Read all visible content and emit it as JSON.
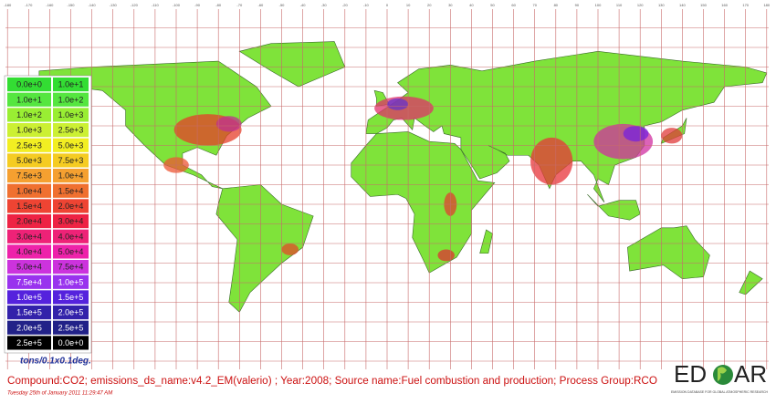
{
  "map": {
    "lon_labels": [
      "-180",
      "-170",
      "-160",
      "-150",
      "-140",
      "-130",
      "-120",
      "-110",
      "-100",
      "-90",
      "-80",
      "-70",
      "-60",
      "-50",
      "-40",
      "-30",
      "-20",
      "-10",
      "0",
      "10",
      "20",
      "30",
      "40",
      "50",
      "60",
      "70",
      "80",
      "90",
      "100",
      "110",
      "120",
      "130",
      "140",
      "150",
      "160",
      "170",
      "180"
    ],
    "legend": [
      {
        "low": "0.0e+0",
        "high": "1.0e+1",
        "color": "#33dd33"
      },
      {
        "low": "1.0e+1",
        "high": "1.0e+2",
        "color": "#55e640"
      },
      {
        "low": "1.0e+2",
        "high": "1.0e+3",
        "color": "#99ee33"
      },
      {
        "low": "1.0e+3",
        "high": "2.5e+3",
        "color": "#ccf033"
      },
      {
        "low": "2.5e+3",
        "high": "5.0e+3",
        "color": "#f2ee22"
      },
      {
        "low": "5.0e+3",
        "high": "7.5e+3",
        "color": "#f5cc22"
      },
      {
        "low": "7.5e+3",
        "high": "1.0e+4",
        "color": "#f5a030"
      },
      {
        "low": "1.0e+4",
        "high": "1.5e+4",
        "color": "#f07030"
      },
      {
        "low": "1.5e+4",
        "high": "2.0e+4",
        "color": "#ee4433"
      },
      {
        "low": "2.0e+4",
        "high": "3.0e+4",
        "color": "#ee2244"
      },
      {
        "low": "3.0e+4",
        "high": "4.0e+4",
        "color": "#ee2277"
      },
      {
        "low": "4.0e+4",
        "high": "5.0e+4",
        "color": "#ee22aa"
      },
      {
        "low": "5.0e+4",
        "high": "7.5e+4",
        "color": "#cc33dd"
      },
      {
        "low": "7.5e+4",
        "high": "1.0e+5",
        "color": "#9933ee"
      },
      {
        "low": "1.0e+5",
        "high": "1.5e+5",
        "color": "#5522dd"
      },
      {
        "low": "1.5e+5",
        "high": "2.0e+5",
        "color": "#3322aa"
      },
      {
        "low": "2.0e+5",
        "high": "2.5e+5",
        "color": "#222288"
      },
      {
        "low": "2.5e+5",
        "high": "0.0e+0",
        "color": "#000000"
      }
    ],
    "unit": "tons/0.1x0.1deg.",
    "caption": "Compound:CO2; emissions_ds_name:v4.2_EM(valerio) ; Year:2008; Source name:Fuel combustion and production; Process Group:RCO",
    "timestamp": "Tuesday 25th of January 2011 11:29:47 AM",
    "logo": {
      "left": "ED",
      "right": "AR",
      "subtitle": "EMISSION DATABASE FOR GLOBAL ATMOSPHERIC RESEARCH"
    }
  }
}
